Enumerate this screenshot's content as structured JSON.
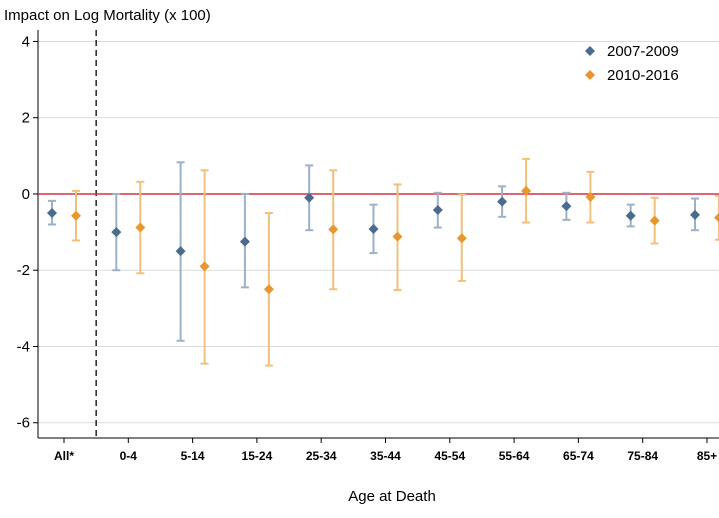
{
  "chart_data": {
    "type": "scatter",
    "ylabel": "Impact on Log Mortality (x 100)",
    "xlabel": "Age at Death",
    "ylim": [
      -6.4,
      4.3
    ],
    "yticks": [
      "4",
      "2",
      "0",
      "-2",
      "-4",
      "-6"
    ],
    "ytick_values": [
      4,
      2,
      0,
      -2,
      -4,
      -6
    ],
    "categories": [
      "All*",
      "0-4",
      "5-14",
      "15-24",
      "25-34",
      "35-44",
      "45-54",
      "55-64",
      "65-74",
      "75-84",
      "85+"
    ],
    "grid": true,
    "reference_line": 0,
    "legend_position": "top-right",
    "series": [
      {
        "name": "2007-2009",
        "color": "#4a6b8f",
        "ci_color": "#9db1c6",
        "values": [
          -0.5,
          -1.0,
          -1.5,
          -1.25,
          -0.1,
          -0.92,
          -0.42,
          -0.2,
          -0.32,
          -0.57,
          -0.55
        ],
        "lower": [
          -0.8,
          -2.0,
          -3.85,
          -2.45,
          -0.95,
          -1.55,
          -0.88,
          -0.6,
          -0.68,
          -0.85,
          -0.95
        ],
        "upper": [
          -0.18,
          0.0,
          0.83,
          0.0,
          0.75,
          -0.28,
          0.03,
          0.2,
          0.03,
          -0.28,
          -0.12
        ]
      },
      {
        "name": "2010-2016",
        "color": "#e8962e",
        "ci_color": "#f2c07d",
        "values": [
          -0.57,
          -0.88,
          -1.9,
          -2.5,
          -0.93,
          -1.12,
          -1.16,
          0.08,
          -0.08,
          -0.7,
          -0.62
        ],
        "lower": [
          -1.22,
          -2.08,
          -4.45,
          -4.5,
          -2.5,
          -2.52,
          -2.28,
          -0.75,
          -0.75,
          -1.3,
          -1.2
        ],
        "upper": [
          0.08,
          0.32,
          0.62,
          -0.5,
          0.62,
          0.25,
          -0.02,
          0.92,
          0.58,
          -0.1,
          -0.05
        ]
      }
    ]
  },
  "colors": {
    "zero_line": "#d9303e",
    "grid": "#dcdcdc",
    "divider": "#000000"
  }
}
